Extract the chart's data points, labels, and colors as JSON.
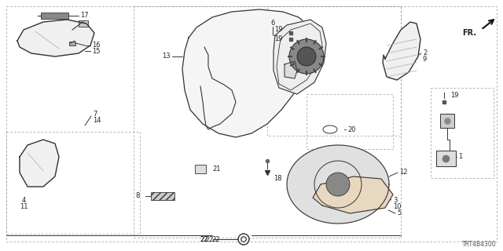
{
  "diagram_code": "TRT4B4300",
  "bg_color": "#ffffff",
  "line_color": "#333333",
  "fig_width": 6.4,
  "fig_height": 3.2,
  "dpi": 100
}
